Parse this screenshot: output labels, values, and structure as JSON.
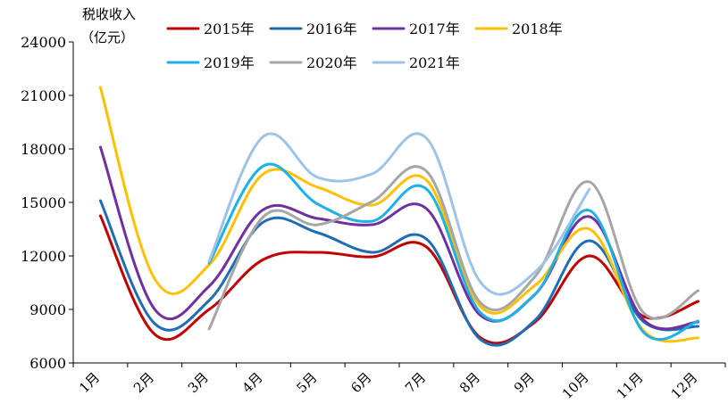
{
  "chart_data": {
    "type": "line",
    "title": "",
    "ylabel_line1": "税收收入",
    "ylabel_line2": "（亿元）",
    "xlabel": "",
    "categories": [
      "1月",
      "2月",
      "3月",
      "4月",
      "5月",
      "6月",
      "7月",
      "8月",
      "9月",
      "10月",
      "11月",
      "12月"
    ],
    "ylim": [
      6000,
      24000
    ],
    "yticks": [
      6000,
      9000,
      12000,
      15000,
      18000,
      21000,
      24000
    ],
    "grid": false,
    "legend_position": "top",
    "series": [
      {
        "name": "2015年",
        "color": "#c00000",
        "values": [
          14250,
          7600,
          9000,
          11800,
          12200,
          11950,
          12500,
          7400,
          8300,
          12000,
          8600,
          9450
        ]
      },
      {
        "name": "2016年",
        "color": "#1f6db5",
        "values": [
          15100,
          8200,
          9500,
          13900,
          13300,
          12200,
          12950,
          7300,
          8400,
          12850,
          8300,
          8050
        ]
      },
      {
        "name": "2017年",
        "color": "#7030a0",
        "values": [
          18100,
          9000,
          10300,
          14600,
          14100,
          13750,
          14650,
          8650,
          9850,
          14200,
          8400,
          8300
        ]
      },
      {
        "name": "2018年",
        "color": "#ffc000",
        "values": [
          21450,
          10700,
          11500,
          16600,
          15850,
          14850,
          16250,
          9150,
          10350,
          13500,
          7800,
          7400
        ]
      },
      {
        "name": "2019年",
        "color": "#1fb0e6",
        "values": [
          null,
          null,
          11600,
          17050,
          14900,
          13950,
          15750,
          8800,
          9850,
          14550,
          7700,
          8350
        ]
      },
      {
        "name": "2020年",
        "color": "#a6a6a6",
        "values": [
          null,
          null,
          7900,
          14200,
          13750,
          15050,
          16750,
          9350,
          10850,
          16150,
          8800,
          10050
        ]
      },
      {
        "name": "2021年",
        "color": "#9dc3e6",
        "values": [
          null,
          null,
          11700,
          18700,
          16400,
          16600,
          18600,
          10500,
          11100,
          15750,
          null,
          null
        ]
      }
    ]
  }
}
